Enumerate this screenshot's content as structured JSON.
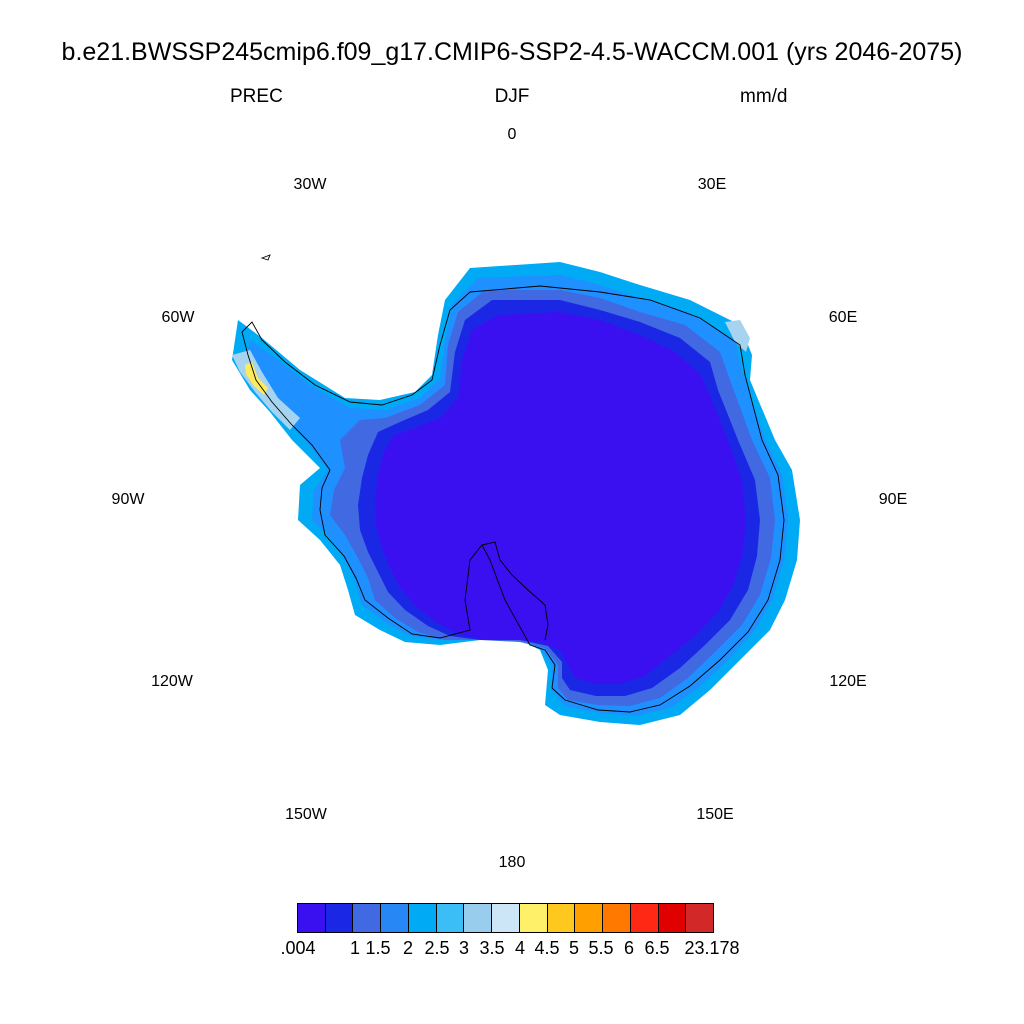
{
  "header": {
    "title": "b.e21.BWSSP245cmip6.f09_g17.CMIP6-SSP2-4.5-WACCM.001 (yrs 2046-2075)",
    "variable": "PREC",
    "season": "DJF",
    "units": "mm/d"
  },
  "map": {
    "projection": "south-polar-stereographic",
    "longitude_labels": [
      "0",
      "30E",
      "60E",
      "90E",
      "120E",
      "150E",
      "180",
      "150W",
      "120W",
      "90W",
      "60W",
      "30W"
    ],
    "colors": {
      "interior": "#3a10f0",
      "ring_inner": "#1a28e6",
      "ring_mid": "#4169e1",
      "coast": "#1e90ff",
      "edge": "#00aaf5",
      "peninsula_light": "#a6d3f0",
      "peninsula_yellow": "#ffeb5a"
    }
  },
  "colorbar": {
    "colors": [
      "#3a10f0",
      "#1a28e6",
      "#4169e1",
      "#2787f5",
      "#00aaf5",
      "#3bbef5",
      "#99cdee",
      "#cce6f7",
      "#fff06a",
      "#ffc81e",
      "#ffa000",
      "#ff7800",
      "#ff2814",
      "#e10000",
      "#d22828"
    ],
    "labels": [
      ".004",
      "1",
      "1.5",
      "2",
      "2.5",
      "3",
      "3.5",
      "4",
      "4.5",
      "5",
      "5.5",
      "6",
      "6.5",
      "23.178"
    ]
  }
}
